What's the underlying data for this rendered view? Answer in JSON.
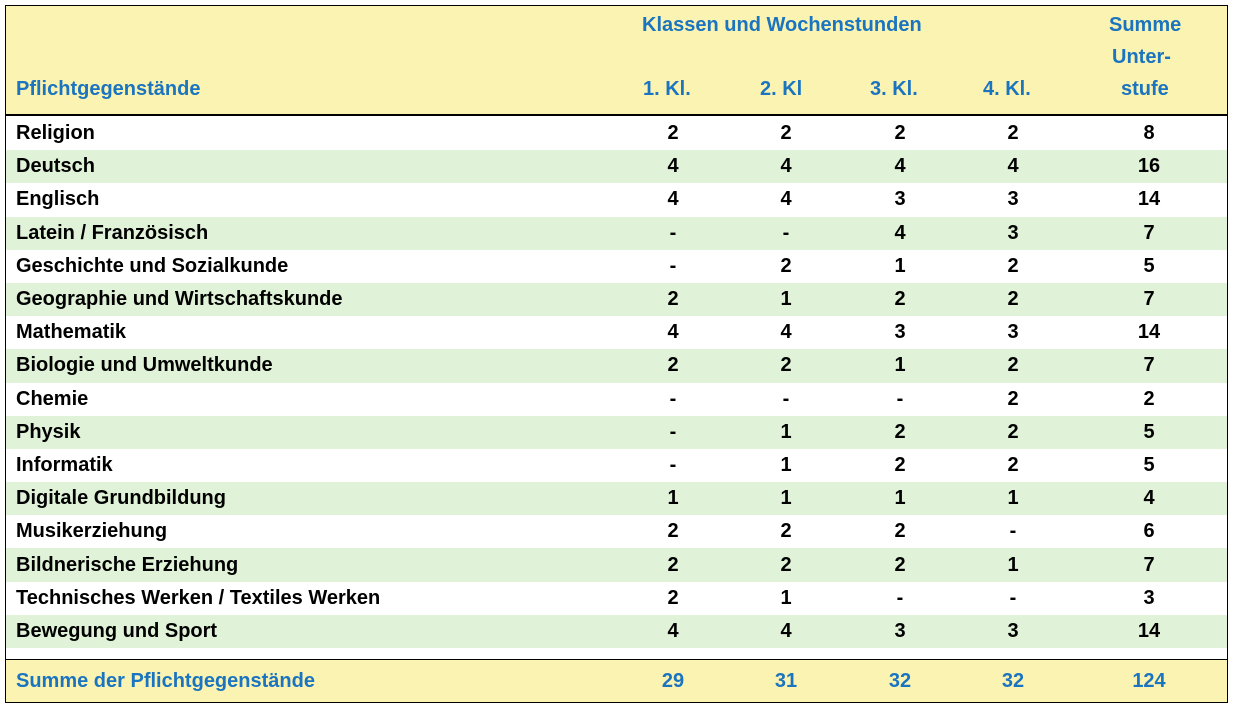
{
  "header": {
    "group_title": "Klassen und Wochenstunden",
    "subject_header": "Pflichtgegenstände",
    "columns": [
      "1. Kl.",
      "2. Kl",
      "3. Kl.",
      "4. Kl."
    ],
    "sum_header": [
      "Summe",
      "Unter-",
      "stufe"
    ]
  },
  "rows": [
    {
      "subject": "Religion",
      "values": [
        "2",
        "2",
        "2",
        "2"
      ],
      "sum": "8"
    },
    {
      "subject": "Deutsch",
      "values": [
        "4",
        "4",
        "4",
        "4"
      ],
      "sum": "16"
    },
    {
      "subject": "Englisch",
      "values": [
        "4",
        "4",
        "3",
        "3"
      ],
      "sum": "14"
    },
    {
      "subject": "Latein / Französisch",
      "values": [
        "-",
        "-",
        "4",
        "3"
      ],
      "sum": "7"
    },
    {
      "subject": "Geschichte und Sozialkunde",
      "values": [
        "-",
        "2",
        "1",
        "2"
      ],
      "sum": "5"
    },
    {
      "subject": "Geographie und Wirtschaftskunde",
      "values": [
        "2",
        "1",
        "2",
        "2"
      ],
      "sum": "7"
    },
    {
      "subject": "Mathematik",
      "values": [
        "4",
        "4",
        "3",
        "3"
      ],
      "sum": "14"
    },
    {
      "subject": "Biologie und Umweltkunde",
      "values": [
        "2",
        "2",
        "1",
        "2"
      ],
      "sum": "7"
    },
    {
      "subject": "Chemie",
      "values": [
        "-",
        "-",
        "-",
        "2"
      ],
      "sum": "2"
    },
    {
      "subject": "Physik",
      "values": [
        "-",
        "1",
        "2",
        "2"
      ],
      "sum": "5"
    },
    {
      "subject": "Informatik",
      "values": [
        "-",
        "1",
        "2",
        "2"
      ],
      "sum": "5"
    },
    {
      "subject": "Digitale Grundbildung",
      "values": [
        "1",
        "1",
        "1",
        "1"
      ],
      "sum": "4"
    },
    {
      "subject": "Musikerziehung",
      "values": [
        "2",
        "2",
        "2",
        "-"
      ],
      "sum": "6"
    },
    {
      "subject": "Bildnerische Erziehung",
      "values": [
        "2",
        "2",
        "2",
        "1"
      ],
      "sum": "7"
    },
    {
      "subject": "Technisches Werken / Textiles Werken",
      "values": [
        "2",
        "1",
        "-",
        "-"
      ],
      "sum": "3"
    },
    {
      "subject": "Bewegung und Sport",
      "values": [
        "4",
        "4",
        "3",
        "3"
      ],
      "sum": "14"
    }
  ],
  "footer": {
    "label": "Summe der Pflichtgegenstände",
    "values": [
      "29",
      "31",
      "32",
      "32"
    ],
    "sum": "124"
  },
  "colors": {
    "header_bg": "#fbf3b2",
    "header_text": "#1a74bf",
    "stripe_bg": "#e0f3d8"
  }
}
